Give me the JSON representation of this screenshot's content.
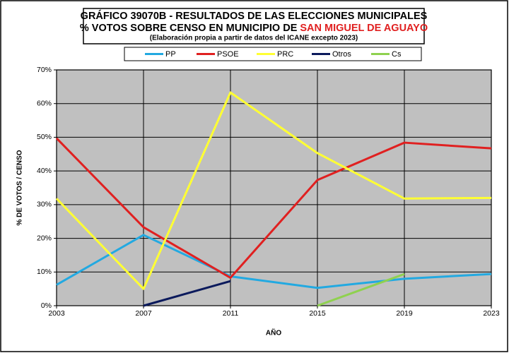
{
  "chart_data": {
    "type": "line",
    "title": "GRÁFICO 39070B - RESULTADOS DE LAS ELECCIONES MUNICIPALES",
    "subtitle": "% VOTOS SOBRE CENSO EN MUNICIPIO DE ",
    "municipality": "SAN MIGUEL DE AGUAYO",
    "source": "(Elaboración propia a partir de datos del ICANE excepto 2023)",
    "x_label": "AÑO",
    "y_label": "% DE VOTOS / CENSO",
    "x": [
      2003,
      2007,
      2011,
      2015,
      2019,
      2023
    ],
    "xlim": [
      2003,
      2023
    ],
    "xticks": [
      2003,
      2007,
      2011,
      2015,
      2019,
      2023
    ],
    "ylim": [
      0,
      70
    ],
    "yticks": [
      {
        "value": 0,
        "label": "0%"
      },
      {
        "value": 10,
        "label": "10%"
      },
      {
        "value": 20,
        "label": "20%"
      },
      {
        "value": 30,
        "label": "30%"
      },
      {
        "value": 40,
        "label": "40%"
      },
      {
        "value": 50,
        "label": "50%"
      },
      {
        "value": 60,
        "label": "60%"
      },
      {
        "value": 70,
        "label": "70%"
      }
    ],
    "grid": true,
    "series": [
      {
        "name": "PP",
        "color": "#22a9e1",
        "values": [
          6.2,
          21,
          8.7,
          5.3,
          8,
          9.4
        ]
      },
      {
        "name": "PSOE",
        "color": "#e02020",
        "values": [
          49.7,
          23.3,
          8.3,
          37.3,
          48.4,
          46.7
        ]
      },
      {
        "name": "PRC",
        "color": "#ffff33",
        "values": [
          31.8,
          5,
          63.3,
          45.3,
          31.8,
          32
        ]
      },
      {
        "name": "Otros",
        "color": "#0b1a5c",
        "values": [
          null,
          0,
          7.3,
          null,
          null,
          null
        ]
      },
      {
        "name": "Cs",
        "color": "#8fd14f",
        "values": [
          null,
          null,
          null,
          0,
          9.4,
          null
        ]
      }
    ]
  }
}
